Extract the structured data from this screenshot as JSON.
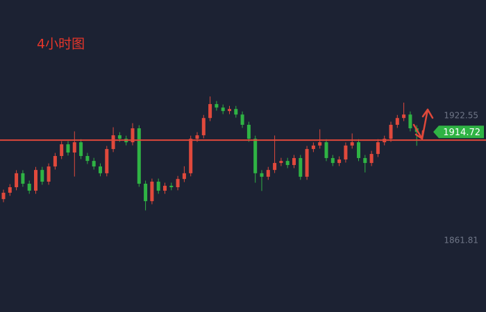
{
  "chart_data": {
    "type": "candlestick",
    "title": "4小时图",
    "up_color": "#e0493c",
    "down_color": "#2fb344",
    "level_color": "#e0483a",
    "level": 1910.74,
    "last_price": 1914.72,
    "ylim": [
      1827,
      1979
    ],
    "yticks": [
      1861.81,
      1922.55
    ],
    "open": [
      1882.0,
      1885.1,
      1887.8,
      1894.6,
      1889.5,
      1886.1,
      1896.2,
      1890.5,
      1897.9,
      1903.0,
      1908.7,
      1904.7,
      1909.7,
      1903.0,
      1900.6,
      1897.9,
      1894.6,
      1906.4,
      1913.1,
      1911.4,
      1909.7,
      1916.5,
      1889.5,
      1881.0,
      1890.5,
      1886.1,
      1888.5,
      1887.8,
      1891.8,
      1894.6,
      1911.4,
      1913.1,
      1921.5,
      1928.3,
      1926.6,
      1924.9,
      1925.9,
      1923.2,
      1918.2,
      1911.4,
      1894.6,
      1892.9,
      1896.2,
      1899.6,
      1900.6,
      1898.6,
      1902.0,
      1892.9,
      1906.4,
      1908.1,
      1909.7,
      1902.0,
      1899.6,
      1901.3,
      1908.1,
      1909.7,
      1902.0,
      1899.6,
      1904.0,
      1909.7,
      1911.4,
      1918.2,
      1921.5,
      1923.2,
      1916.5
    ],
    "high": [
      1886.6,
      1889.3,
      1896.1,
      1896.1,
      1891.0,
      1897.7,
      1897.7,
      1899.4,
      1904.5,
      1910.2,
      1910.2,
      1915.0,
      1911.2,
      1904.5,
      1902.1,
      1899.4,
      1907.9,
      1917.0,
      1914.6,
      1912.9,
      1919.0,
      1918.0,
      1891.0,
      1892.0,
      1892.0,
      1890.0,
      1890.0,
      1893.3,
      1898.0,
      1912.9,
      1914.6,
      1923.0,
      1932.0,
      1929.8,
      1928.1,
      1927.4,
      1927.4,
      1924.7,
      1919.7,
      1912.9,
      1896.1,
      1897.7,
      1913.0,
      1902.1,
      1902.1,
      1903.5,
      1903.5,
      1907.9,
      1909.6,
      1916.0,
      1911.2,
      1903.5,
      1902.8,
      1909.6,
      1914.0,
      1911.2,
      1903.5,
      1905.5,
      1911.2,
      1912.9,
      1919.7,
      1923.0,
      1929.0,
      1924.7,
      1918.0
    ],
    "low": [
      1880.5,
      1883.6,
      1886.3,
      1888.0,
      1884.6,
      1884.6,
      1889.0,
      1889.0,
      1896.4,
      1901.5,
      1903.2,
      1893.0,
      1901.5,
      1899.1,
      1896.4,
      1893.1,
      1893.1,
      1904.9,
      1909.9,
      1908.2,
      1908.2,
      1888.0,
      1876.5,
      1879.5,
      1884.6,
      1884.6,
      1886.3,
      1886.3,
      1890.3,
      1893.1,
      1909.9,
      1911.6,
      1920.0,
      1925.1,
      1923.4,
      1923.4,
      1921.7,
      1916.7,
      1909.9,
      1890.0,
      1886.0,
      1891.4,
      1894.7,
      1898.1,
      1897.1,
      1897.1,
      1891.4,
      1891.4,
      1904.9,
      1906.6,
      1900.5,
      1898.1,
      1898.1,
      1899.8,
      1906.6,
      1900.5,
      1895.0,
      1898.1,
      1902.5,
      1908.2,
      1909.9,
      1916.7,
      1920.0,
      1915.0,
      1908.0
    ],
    "close": [
      1885.1,
      1887.8,
      1894.6,
      1889.5,
      1886.1,
      1896.2,
      1890.5,
      1897.9,
      1903.0,
      1908.7,
      1904.7,
      1909.7,
      1903.0,
      1900.6,
      1897.9,
      1894.6,
      1906.4,
      1913.1,
      1911.4,
      1909.7,
      1916.5,
      1889.5,
      1881.0,
      1890.5,
      1886.1,
      1888.5,
      1887.8,
      1891.8,
      1894.6,
      1911.4,
      1913.1,
      1921.5,
      1928.3,
      1926.6,
      1924.9,
      1925.9,
      1923.2,
      1918.2,
      1911.4,
      1894.6,
      1892.9,
      1896.2,
      1899.6,
      1900.6,
      1898.6,
      1902.0,
      1892.9,
      1906.4,
      1908.1,
      1909.7,
      1902.0,
      1899.6,
      1901.3,
      1908.1,
      1909.7,
      1902.0,
      1899.6,
      1904.0,
      1909.7,
      1911.4,
      1918.2,
      1921.5,
      1923.2,
      1916.5,
      1914.72
    ]
  }
}
